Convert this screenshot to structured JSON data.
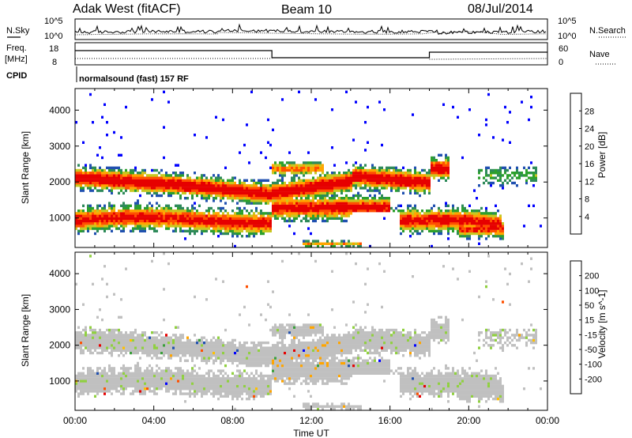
{
  "header": {
    "site_title": "Adak West (fitACF)",
    "beam": "Beam 10",
    "date": "08/Jul/2014"
  },
  "status_panels": {
    "nsky_label": "N.Sky",
    "nsearch_label": "N.Search",
    "noise_ticks_left": [
      "10^5",
      "10^0"
    ],
    "noise_ticks_right": [
      "10^5",
      "10^0"
    ],
    "freq_label_1": "Freq.",
    "freq_label_2": "[MHz]",
    "freq_ticks": [
      "18",
      "8"
    ],
    "nave_label": "Nave",
    "nave_ticks": [
      "60",
      "0"
    ],
    "cpid_label": "CPID",
    "cpid_text": "normalsound (fast) 157 RF"
  },
  "chart_data": [
    {
      "type": "heatmap",
      "name": "power",
      "ylabel": "Slant Range [km]",
      "xlabel": "Time UT",
      "x_ticks": [
        "00:00",
        "04:00",
        "08:00",
        "12:00",
        "16:00",
        "20:00",
        "00:00"
      ],
      "x_range_hours": [
        0,
        24
      ],
      "y_ticks": [
        1000,
        2000,
        3000,
        4000
      ],
      "ylim": [
        180,
        4600
      ],
      "colorbar_label": "Power [dB]",
      "colorbar_ticks": [
        "28",
        "24",
        "20",
        "16",
        "12",
        "8",
        "4"
      ],
      "colors": [
        "#0000ff",
        "#2050b0",
        "#2e8a5a",
        "#2ca02c",
        "#c8c820",
        "#ffa500",
        "#ff5000",
        "#e60000"
      ],
      "grid": false
    },
    {
      "type": "heatmap",
      "name": "velocity",
      "ylabel": "Slant Range [km]",
      "xlabel": "Time UT",
      "x_ticks": [
        "00:00",
        "04:00",
        "08:00",
        "12:00",
        "16:00",
        "20:00",
        "00:00"
      ],
      "x_range_hours": [
        0,
        24
      ],
      "y_ticks": [
        1000,
        2000,
        3000,
        4000
      ],
      "ylim": [
        180,
        4600
      ],
      "colorbar_label": "Velocity [m s^-1]",
      "colorbar_ticks": [
        "200",
        "100",
        "50",
        "15",
        "-15",
        "-50",
        "-100",
        "-200"
      ],
      "colors": [
        "#e60000",
        "#ff5000",
        "#ffa500",
        "#ffc000",
        "#c0c0c0",
        "#90d040",
        "#3aa03a",
        "#2050b0",
        "#0000ff"
      ],
      "grid": false
    }
  ]
}
